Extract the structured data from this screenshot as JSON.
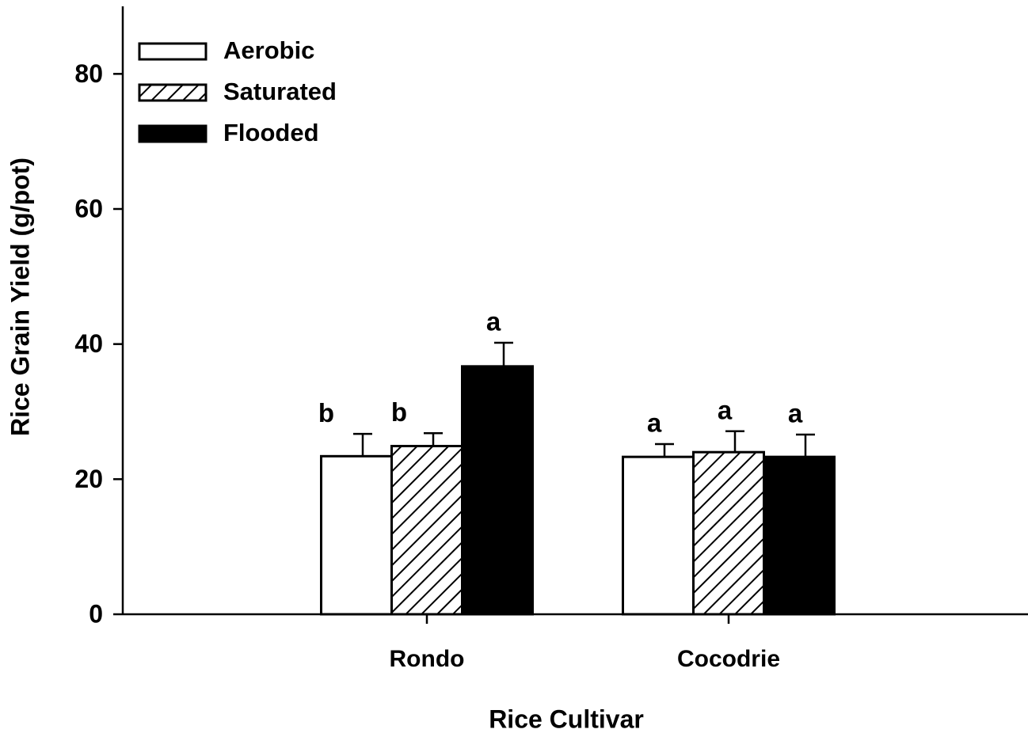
{
  "chart_data": {
    "type": "bar",
    "xlabel": "Rice Cultivar",
    "ylabel": "Rice Grain Yield (g/pot)",
    "categories": [
      "Rondo",
      "Cocodrie"
    ],
    "series": [
      {
        "name": "Aerobic",
        "color": "#ffffff",
        "values": [
          23.4,
          23.3
        ],
        "errors": [
          3.3,
          1.9
        ],
        "letters": [
          "b",
          "a"
        ]
      },
      {
        "name": "Saturated",
        "color": "#ffffff",
        "pattern": "hatch",
        "values": [
          24.9,
          24.0
        ],
        "errors": [
          1.9,
          3.1
        ],
        "letters": [
          "b",
          "a"
        ]
      },
      {
        "name": "Flooded",
        "color": "#000000",
        "values": [
          36.7,
          23.3
        ],
        "errors": [
          3.5,
          3.3
        ],
        "letters": [
          "a",
          "a"
        ]
      }
    ],
    "ylim": [
      0,
      90
    ],
    "yticks": [
      0,
      20,
      40,
      60,
      80
    ],
    "legend": "upper left",
    "grid": false
  }
}
